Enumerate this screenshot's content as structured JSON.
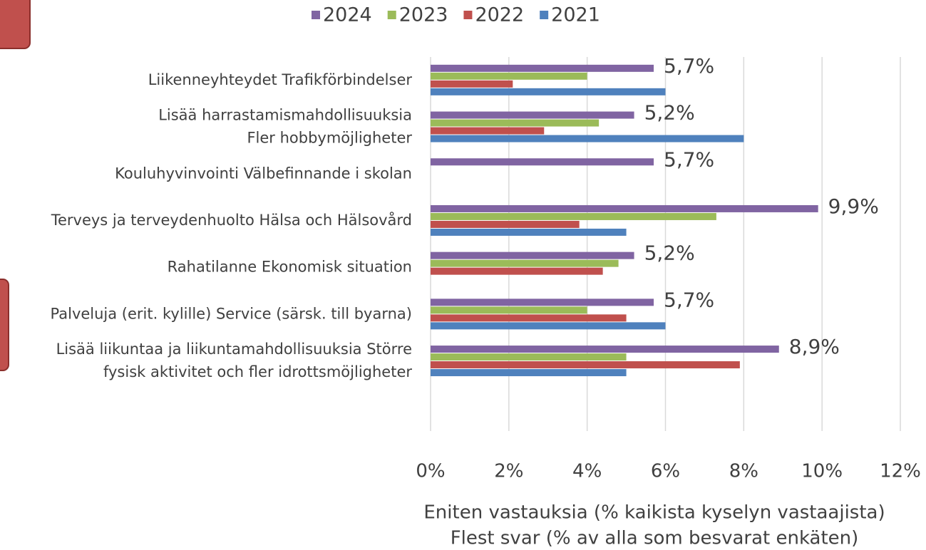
{
  "chart_data": {
    "type": "bar",
    "orientation": "horizontal",
    "categories": [
      [
        "Liikenneyhteydet Trafikförbindelser"
      ],
      [
        "Lisää harrastamismahdollisuuksia",
        "Fler hobbymöjligheter"
      ],
      [
        "Kouluhyvinvointi Välbefinnande i skolan"
      ],
      [
        "Terveys ja terveydenhuolto Hälsa och Hälsovård"
      ],
      [
        "Rahatilanne Ekonomisk situation"
      ],
      [
        "Palveluja (erit. kylille) Service (särsk. till byarna)"
      ],
      [
        "Lisää liikuntaa ja liikuntamahdollisuuksia Större",
        "fysisk aktivitet och fler idrottsmöjligheter"
      ]
    ],
    "series": [
      {
        "name": "2024",
        "color": "#8064a2",
        "values": [
          5.7,
          5.2,
          5.7,
          9.9,
          5.2,
          5.7,
          8.9
        ],
        "value_labels": [
          "5,7%",
          "5,2%",
          "5,7%",
          "9,9%",
          "5,2%",
          "5,7%",
          "8,9%"
        ]
      },
      {
        "name": "2023",
        "color": "#9bbb59",
        "values": [
          4.0,
          4.3,
          null,
          7.3,
          4.8,
          4.0,
          5.0
        ]
      },
      {
        "name": "2022",
        "color": "#c0504d",
        "values": [
          2.1,
          2.9,
          null,
          3.8,
          4.4,
          5.0,
          7.9
        ]
      },
      {
        "name": "2021",
        "color": "#4f81bd",
        "values": [
          6.0,
          8.0,
          null,
          5.0,
          null,
          6.0,
          5.0
        ]
      }
    ],
    "xlim": [
      0,
      12
    ],
    "xticks": [
      {
        "value": 0,
        "label": "0%"
      },
      {
        "value": 2,
        "label": "2%"
      },
      {
        "value": 4,
        "label": "4%"
      },
      {
        "value": 6,
        "label": "6%"
      },
      {
        "value": 8,
        "label": "8%"
      },
      {
        "value": 10,
        "label": "10%"
      },
      {
        "value": 12,
        "label": "12%"
      }
    ],
    "x_label": [
      "Eniten vastauksia (% kaikista kyselyn vastaajista)",
      "Flest svar (% av alla som besvarat enkäten)"
    ],
    "grid": true,
    "legend": "top"
  }
}
